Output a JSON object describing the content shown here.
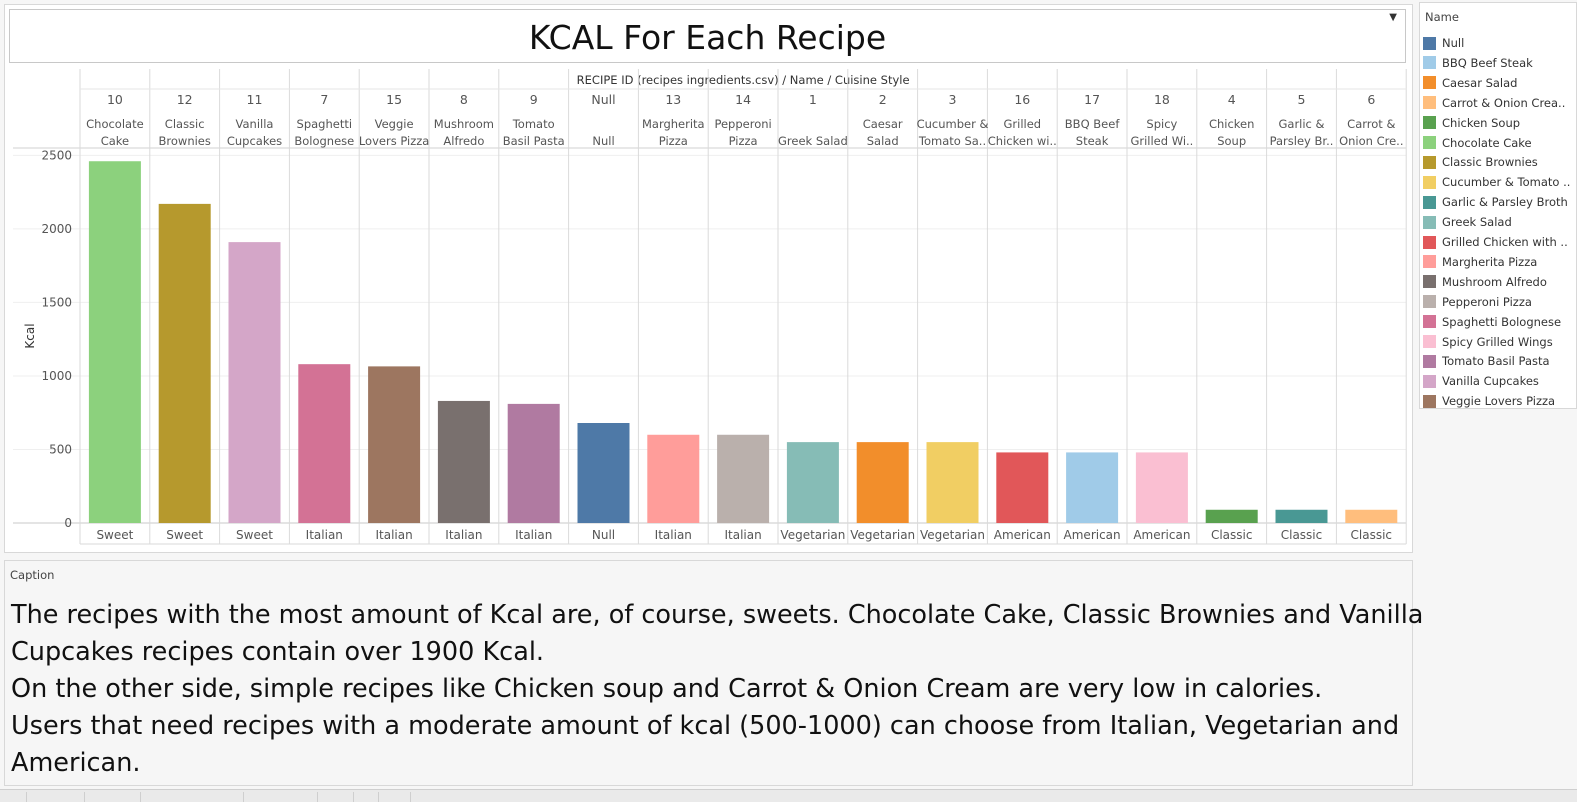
{
  "title": "KCAL For Each Recipe",
  "chart_data": {
    "type": "bar",
    "header_label": "RECIPE ID (recipes ingredients.csv) / Name / Cuisine Style",
    "ylabel": "Kcal",
    "ylim": [
      0,
      2550
    ],
    "yticks": [
      "0",
      "500",
      "1000",
      "1500",
      "2000",
      "2500"
    ],
    "ytick_values": [
      0,
      500,
      1000,
      1500,
      2000,
      2500
    ],
    "grid": true,
    "bars": [
      {
        "id": "10",
        "name_lines": [
          "Chocolate",
          "Cake"
        ],
        "style": "Sweet",
        "value": 2460,
        "color": "#8cd17d"
      },
      {
        "id": "12",
        "name_lines": [
          "Classic",
          "Brownies"
        ],
        "style": "Sweet",
        "value": 2170,
        "color": "#b6992d"
      },
      {
        "id": "11",
        "name_lines": [
          "Vanilla",
          "Cupcakes"
        ],
        "style": "Sweet",
        "value": 1910,
        "color": "#d4a6c8"
      },
      {
        "id": "7",
        "name_lines": [
          "Spaghetti",
          "Bolognese"
        ],
        "style": "Italian",
        "value": 1080,
        "color": "#d37295"
      },
      {
        "id": "15",
        "name_lines": [
          "Veggie",
          "Lovers Pizza"
        ],
        "style": "Italian",
        "value": 1065,
        "color": "#9d7660"
      },
      {
        "id": "8",
        "name_lines": [
          "Mushroom",
          "Alfredo"
        ],
        "style": "Italian",
        "value": 830,
        "color": "#79706e"
      },
      {
        "id": "9",
        "name_lines": [
          "Tomato",
          "Basil Pasta"
        ],
        "style": "Italian",
        "value": 810,
        "color": "#b07aa1"
      },
      {
        "id": "Null",
        "name_lines": [
          "",
          "Null"
        ],
        "style": "Null",
        "value": 680,
        "color": "#4e79a7"
      },
      {
        "id": "13",
        "name_lines": [
          "Margherita",
          "Pizza"
        ],
        "style": "Italian",
        "value": 600,
        "color": "#ff9d9a"
      },
      {
        "id": "14",
        "name_lines": [
          "Pepperoni",
          "Pizza"
        ],
        "style": "Italian",
        "value": 600,
        "color": "#bab0ac"
      },
      {
        "id": "1",
        "name_lines": [
          "",
          "Greek Salad"
        ],
        "style": "Vegetarian",
        "value": 550,
        "color": "#86bcb6"
      },
      {
        "id": "2",
        "name_lines": [
          "Caesar",
          "Salad"
        ],
        "style": "Vegetarian",
        "value": 550,
        "color": "#f28e2b"
      },
      {
        "id": "3",
        "name_lines": [
          "Cucumber &",
          "Tomato Sa.."
        ],
        "style": "Vegetarian",
        "value": 550,
        "color": "#f1ce63"
      },
      {
        "id": "16",
        "name_lines": [
          "Grilled",
          "Chicken wi.."
        ],
        "style": "American",
        "value": 480,
        "color": "#e15759"
      },
      {
        "id": "17",
        "name_lines": [
          "BBQ Beef",
          "Steak"
        ],
        "style": "American",
        "value": 480,
        "color": "#a0cbe8"
      },
      {
        "id": "18",
        "name_lines": [
          "Spicy",
          "Grilled Wi.."
        ],
        "style": "American",
        "value": 480,
        "color": "#fabfd2"
      },
      {
        "id": "4",
        "name_lines": [
          "Chicken",
          "Soup"
        ],
        "style": "Classic",
        "value": 90,
        "color": "#59a14f"
      },
      {
        "id": "5",
        "name_lines": [
          "Garlic &",
          "Parsley Br.."
        ],
        "style": "Classic",
        "value": 90,
        "color": "#499894"
      },
      {
        "id": "6",
        "name_lines": [
          "Carrot &",
          "Onion Cre.."
        ],
        "style": "Classic",
        "value": 90,
        "color": "#ffbe7d"
      }
    ]
  },
  "legend": {
    "title": "Name",
    "items": [
      {
        "label": "Null",
        "color": "#4e79a7"
      },
      {
        "label": "BBQ Beef Steak",
        "color": "#a0cbe8"
      },
      {
        "label": "Caesar Salad",
        "color": "#f28e2b"
      },
      {
        "label": "Carrot & Onion Crea..",
        "color": "#ffbe7d"
      },
      {
        "label": "Chicken Soup",
        "color": "#59a14f"
      },
      {
        "label": "Chocolate Cake",
        "color": "#8cd17d"
      },
      {
        "label": "Classic Brownies",
        "color": "#b6992d"
      },
      {
        "label": "Cucumber & Tomato ..",
        "color": "#f1ce63"
      },
      {
        "label": "Garlic & Parsley Broth",
        "color": "#499894"
      },
      {
        "label": "Greek Salad",
        "color": "#86bcb6"
      },
      {
        "label": "Grilled Chicken with ..",
        "color": "#e15759"
      },
      {
        "label": "Margherita Pizza",
        "color": "#ff9d9a"
      },
      {
        "label": "Mushroom Alfredo",
        "color": "#79706e"
      },
      {
        "label": "Pepperoni Pizza",
        "color": "#bab0ac"
      },
      {
        "label": "Spaghetti Bolognese",
        "color": "#d37295"
      },
      {
        "label": "Spicy Grilled Wings",
        "color": "#fabfd2"
      },
      {
        "label": "Tomato Basil Pasta",
        "color": "#b07aa1"
      },
      {
        "label": "Vanilla Cupcakes",
        "color": "#d4a6c8"
      },
      {
        "label": "Veggie Lovers Pizza",
        "color": "#9d7660"
      }
    ]
  },
  "caption": {
    "title": "Caption",
    "lines": [
      "The recipes with the most amount of Kcal are, of course, sweets. Chocolate Cake, Classic Brownies and Vanilla",
      "Cupcakes recipes contain over 1900 Kcal.",
      "On the other side, simple recipes like Chicken soup and Carrot & Onion Cream are very low in calories.",
      "Users that need recipes with a moderate amount of kcal (500-1000) can choose from Italian, Vegetarian and",
      "American."
    ]
  }
}
